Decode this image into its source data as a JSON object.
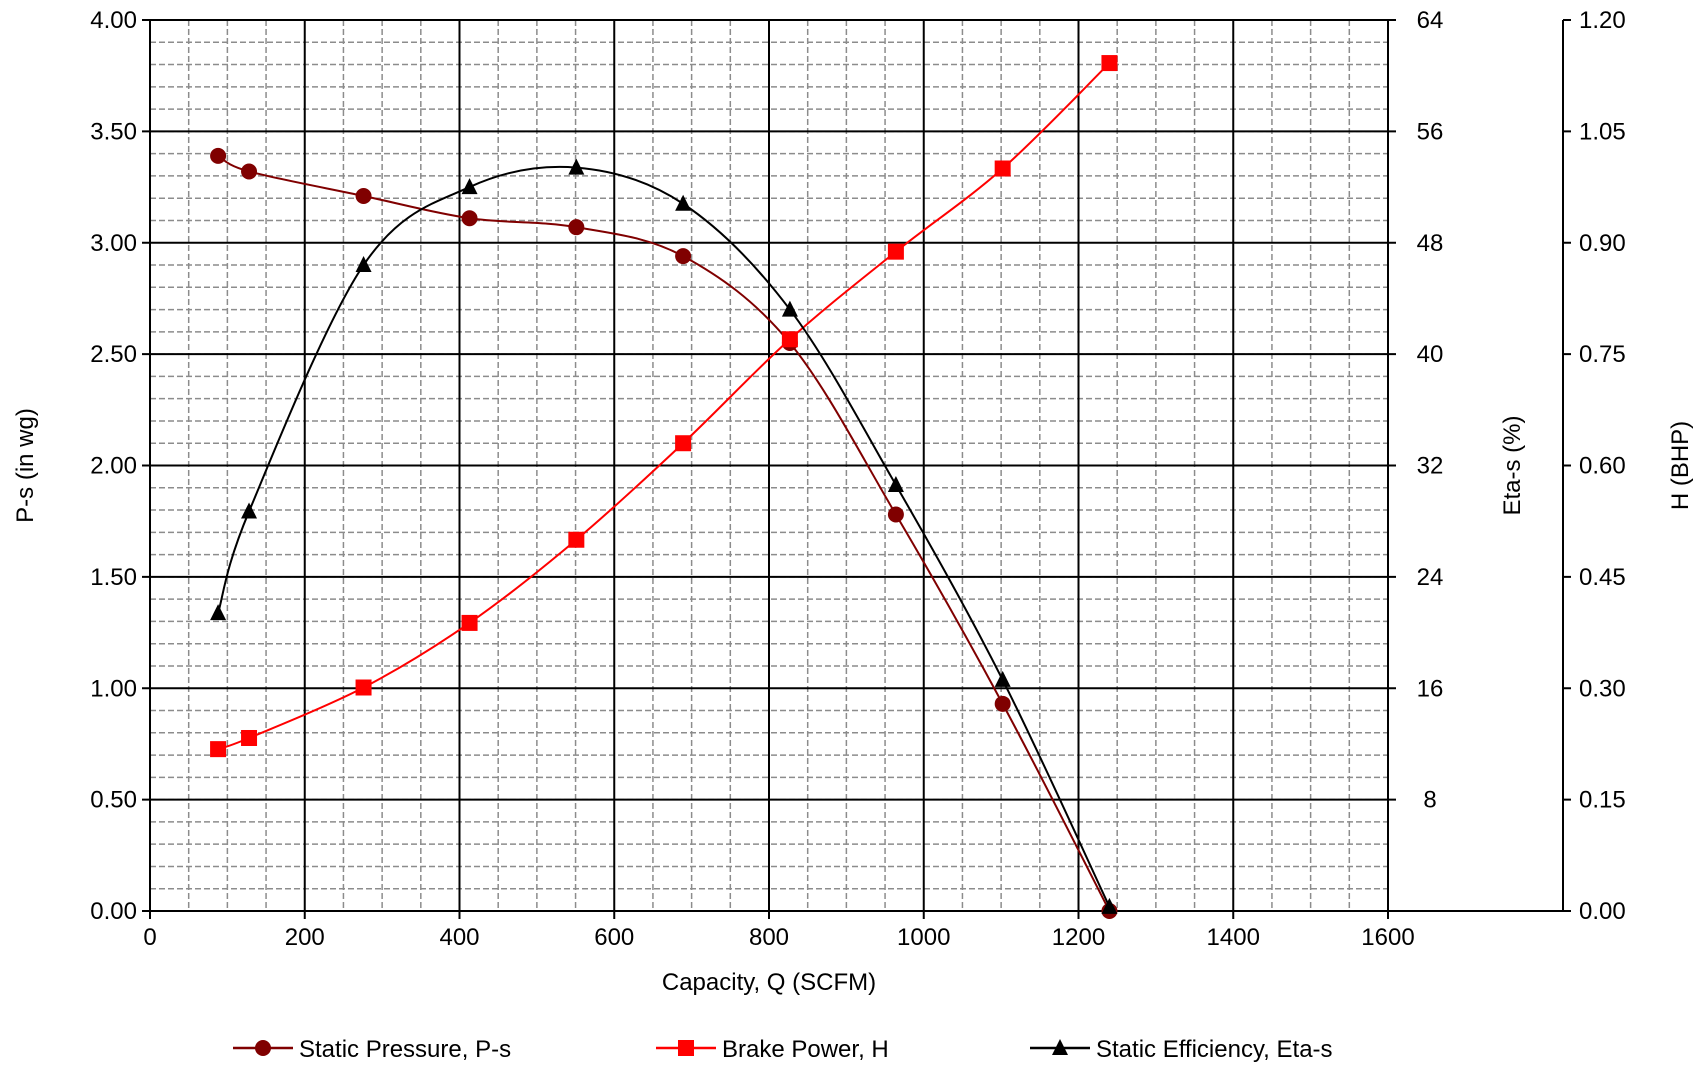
{
  "chart_data": {
    "type": "line",
    "xlabel": "Capacity, Q (SCFM)",
    "xlim": [
      0,
      1600
    ],
    "xticks": [
      0,
      200,
      400,
      600,
      800,
      1000,
      1200,
      1400,
      1600
    ],
    "xtick_labels": [
      "0",
      "200",
      "400",
      "600",
      "800",
      "1000",
      "1200",
      "1400",
      "1600"
    ],
    "axes": {
      "left": {
        "label": "P-s (in wg)",
        "lim": [
          0,
          4
        ],
        "ticks": [
          0,
          0.5,
          1,
          1.5,
          2,
          2.5,
          3,
          3.5,
          4
        ],
        "tick_labels": [
          "0.00",
          "0.50",
          "1.00",
          "1.50",
          "2.00",
          "2.50",
          "3.00",
          "3.50",
          "4.00"
        ]
      },
      "right1": {
        "label": "Eta-s (%)",
        "lim": [
          0,
          64
        ],
        "ticks": [
          0,
          8,
          16,
          24,
          32,
          40,
          48,
          56,
          64
        ],
        "tick_labels": [
          "",
          "8",
          "16",
          "24",
          "32",
          "40",
          "48",
          "56",
          "64"
        ]
      },
      "right2": {
        "label": "H (BHP)",
        "lim": [
          0,
          1.2
        ],
        "ticks": [
          0,
          0.15,
          0.3,
          0.45,
          0.6,
          0.75,
          0.9,
          1.05,
          1.2
        ],
        "tick_labels": [
          "0.00",
          "0.15",
          "0.30",
          "0.45",
          "0.60",
          "0.75",
          "0.90",
          "1.05",
          "1.20"
        ]
      }
    },
    "grid": true,
    "legend_position": "bottom",
    "series": [
      {
        "name": "Static Pressure, P-s",
        "axis": "left",
        "color": "#800000",
        "marker": "circle",
        "x": [
          88,
          128,
          276,
          413,
          551,
          689,
          827,
          964,
          1102,
          1240
        ],
        "y": [
          3.39,
          3.32,
          3.21,
          3.11,
          3.07,
          2.94,
          2.55,
          1.78,
          0.93,
          0.0
        ]
      },
      {
        "name": "Brake Power, H",
        "axis": "right2",
        "color": "#ff0000",
        "marker": "square",
        "x": [
          88,
          128,
          276,
          413,
          551,
          689,
          827,
          964,
          1102,
          1240
        ],
        "y": [
          0.218,
          0.233,
          0.301,
          0.388,
          0.5,
          0.63,
          0.77,
          0.888,
          1.0,
          1.142
        ]
      },
      {
        "name": "Static Efficiency, Eta-s",
        "axis": "right1",
        "color": "#000000",
        "marker": "triangle",
        "x": [
          88,
          128,
          276,
          413,
          551,
          689,
          827,
          964,
          1102,
          1240
        ],
        "y": [
          21.4,
          28.7,
          46.4,
          52.0,
          53.4,
          50.8,
          43.2,
          30.6,
          16.6,
          0.3
        ]
      }
    ]
  }
}
